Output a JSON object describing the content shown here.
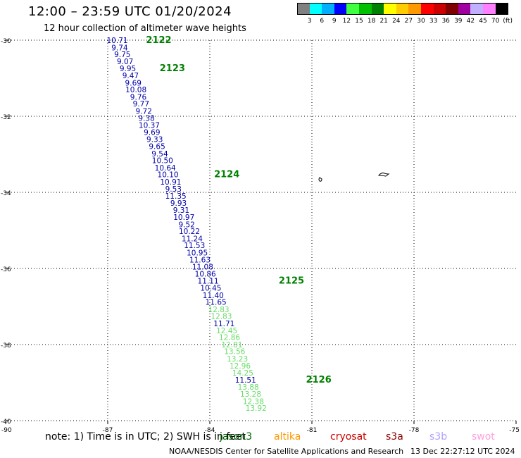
{
  "title": "12:00 – 23:59 UTC 01/20/2024",
  "subtitle": "12 hour collection of altimeter wave heights",
  "note": "note:  1) Time is in UTC; 2) SWH is in feet",
  "credit": "NOAA/NESDIS Center for Satellite Applications and Research",
  "timestamp": "13 Dec 22:27:12 UTC 2024",
  "satellites": [
    {
      "name": "jason3",
      "color": "#006400"
    },
    {
      "name": "altika",
      "color": "#ff9900"
    },
    {
      "name": "cryosat",
      "color": "#cc0000"
    },
    {
      "name": "s3a",
      "color": "#8b0000"
    },
    {
      "name": "s3b",
      "color": "#b0a0ff"
    },
    {
      "name": "swot",
      "color": "#ffa0e0"
    }
  ],
  "colorbar": {
    "colors": [
      "#808080",
      "#00ffff",
      "#00b0ff",
      "#0000ff",
      "#40ff40",
      "#00c000",
      "#008000",
      "#ffff00",
      "#ffcc00",
      "#ff9900",
      "#ff0000",
      "#cc0000",
      "#800000",
      "#a000a0",
      "#c0b0ff",
      "#ff80ff",
      "#000000"
    ],
    "labels": [
      "3",
      "6",
      "9",
      "12",
      "15",
      "18",
      "21",
      "24",
      "27",
      "30",
      "33",
      "36",
      "39",
      "42",
      "45",
      "70",
      "(ft)"
    ]
  },
  "chart_data": {
    "type": "scatter",
    "xlim": [
      -90,
      -75
    ],
    "ylim": [
      -40,
      -30
    ],
    "x_ticks": [
      -90,
      -87,
      -84,
      -81,
      -78,
      -75
    ],
    "y_ticks": [
      -30,
      -32,
      -34,
      -36,
      -38,
      -40
    ],
    "grid": true,
    "series": [
      {
        "name": "jason3",
        "color_low": "#0000aa",
        "color_high": "#66dd66",
        "points": [
          {
            "lon": -86.72,
            "lat": -30.0,
            "swh": 10.71
          },
          {
            "lon": -86.65,
            "lat": -30.19,
            "swh": 9.74
          },
          {
            "lon": -86.57,
            "lat": -30.37,
            "swh": 9.75
          },
          {
            "lon": -86.49,
            "lat": -30.56,
            "swh": 9.07
          },
          {
            "lon": -86.41,
            "lat": -30.74,
            "swh": 9.95
          },
          {
            "lon": -86.33,
            "lat": -30.93,
            "swh": 9.47
          },
          {
            "lon": -86.25,
            "lat": -31.12,
            "swh": 9.69
          },
          {
            "lon": -86.17,
            "lat": -31.3,
            "swh": 10.08
          },
          {
            "lon": -86.1,
            "lat": -31.49,
            "swh": 9.76
          },
          {
            "lon": -86.02,
            "lat": -31.67,
            "swh": 9.77
          },
          {
            "lon": -85.94,
            "lat": -31.86,
            "swh": 9.72
          },
          {
            "lon": -85.86,
            "lat": -32.05,
            "swh": 9.38
          },
          {
            "lon": -85.78,
            "lat": -32.23,
            "swh": 10.37
          },
          {
            "lon": -85.7,
            "lat": -32.42,
            "swh": 9.69
          },
          {
            "lon": -85.62,
            "lat": -32.6,
            "swh": 9.33
          },
          {
            "lon": -85.55,
            "lat": -32.79,
            "swh": 9.65
          },
          {
            "lon": -85.47,
            "lat": -32.98,
            "swh": 9.54
          },
          {
            "lon": -85.39,
            "lat": -33.16,
            "swh": 10.5
          },
          {
            "lon": -85.31,
            "lat": -33.35,
            "swh": 10.64
          },
          {
            "lon": -85.23,
            "lat": -33.53,
            "swh": 10.1
          },
          {
            "lon": -85.15,
            "lat": -33.72,
            "swh": 10.91
          },
          {
            "lon": -85.07,
            "lat": -33.91,
            "swh": 9.53
          },
          {
            "lon": -85.0,
            "lat": -34.09,
            "swh": 11.35
          },
          {
            "lon": -84.92,
            "lat": -34.28,
            "swh": 9.93
          },
          {
            "lon": -84.84,
            "lat": -34.46,
            "swh": 9.31
          },
          {
            "lon": -84.76,
            "lat": -34.65,
            "swh": 10.97
          },
          {
            "lon": -84.68,
            "lat": -34.84,
            "swh": 9.52
          },
          {
            "lon": -84.6,
            "lat": -35.02,
            "swh": 10.22
          },
          {
            "lon": -84.52,
            "lat": -35.21,
            "swh": 11.24
          },
          {
            "lon": -84.45,
            "lat": -35.39,
            "swh": 11.53
          },
          {
            "lon": -84.37,
            "lat": -35.58,
            "swh": 10.95
          },
          {
            "lon": -84.29,
            "lat": -35.77,
            "swh": 11.63
          },
          {
            "lon": -84.21,
            "lat": -35.95,
            "swh": 11.08
          },
          {
            "lon": -84.13,
            "lat": -36.14,
            "swh": 10.86
          },
          {
            "lon": -84.05,
            "lat": -36.32,
            "swh": 11.11
          },
          {
            "lon": -83.97,
            "lat": -36.51,
            "swh": 10.45
          },
          {
            "lon": -83.9,
            "lat": -36.7,
            "swh": 11.4
          },
          {
            "lon": -83.82,
            "lat": -36.88,
            "swh": 11.65
          },
          {
            "lon": -83.74,
            "lat": -37.07,
            "swh": 12.83
          },
          {
            "lon": -83.66,
            "lat": -37.25,
            "swh": 12.83
          },
          {
            "lon": -83.58,
            "lat": -37.44,
            "swh": 11.71
          },
          {
            "lon": -83.5,
            "lat": -37.63,
            "swh": 12.45
          },
          {
            "lon": -83.42,
            "lat": -37.81,
            "swh": 12.86
          },
          {
            "lon": -83.35,
            "lat": -38.0,
            "swh": 12.81
          },
          {
            "lon": -83.27,
            "lat": -38.18,
            "swh": 13.56
          },
          {
            "lon": -83.19,
            "lat": -38.37,
            "swh": 13.23
          },
          {
            "lon": -83.11,
            "lat": -38.56,
            "swh": 12.96
          },
          {
            "lon": -83.03,
            "lat": -38.74,
            "swh": 14.25
          },
          {
            "lon": -82.95,
            "lat": -38.93,
            "swh": 11.51
          },
          {
            "lon": -82.87,
            "lat": -39.11,
            "swh": 13.88
          },
          {
            "lon": -82.8,
            "lat": -39.3,
            "swh": 13.28
          },
          {
            "lon": -82.72,
            "lat": -39.49,
            "swh": 12.38
          },
          {
            "lon": -82.64,
            "lat": -39.67,
            "swh": 13.92
          }
        ]
      }
    ],
    "annotations": [
      {
        "text": "2122",
        "lon": -85.5,
        "lat": -30.0
      },
      {
        "text": "2123",
        "lon": -85.1,
        "lat": -30.74
      },
      {
        "text": "2124",
        "lon": -83.5,
        "lat": -33.53
      },
      {
        "text": "2125",
        "lon": -81.6,
        "lat": -36.32
      },
      {
        "text": "2126",
        "lon": -80.8,
        "lat": -38.93
      }
    ]
  }
}
